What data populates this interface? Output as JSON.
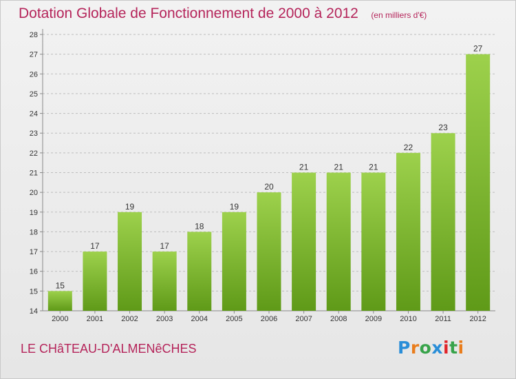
{
  "title": "Dotation Globale de Fonctionnement de 2000 à 2012",
  "unit": "(en milliers d'€)",
  "commune": "LE CHâTEAU-D'ALMENêCHES",
  "logo": {
    "letters": [
      "P",
      "r",
      "o",
      "x",
      "i",
      "t",
      "i"
    ],
    "colors": [
      "#2a8ed8",
      "#e97d1c",
      "#37a34a",
      "#2a8ed8",
      "#e0242a",
      "#37a34a",
      "#e97d1c"
    ]
  },
  "colors": {
    "bar_top": "#9dd14c",
    "bar_bottom": "#5f9a18",
    "title": "#b5245a",
    "grid": "#bdbdbd"
  },
  "chart_data": {
    "type": "bar",
    "title": "Dotation Globale de Fonctionnement de 2000 à 2012",
    "ylabel": "(en milliers d'€)",
    "xlabel": "",
    "categories": [
      "2000",
      "2001",
      "2002",
      "2003",
      "2004",
      "2005",
      "2006",
      "2007",
      "2008",
      "2009",
      "2010",
      "2011",
      "2012"
    ],
    "values": [
      15,
      17,
      19,
      17,
      18,
      19,
      20,
      21,
      21,
      21,
      22,
      23,
      27
    ],
    "ylim": [
      14,
      28
    ],
    "yticks": [
      14,
      15,
      16,
      17,
      18,
      19,
      20,
      21,
      22,
      23,
      24,
      25,
      26,
      27,
      28
    ],
    "grid": true
  }
}
